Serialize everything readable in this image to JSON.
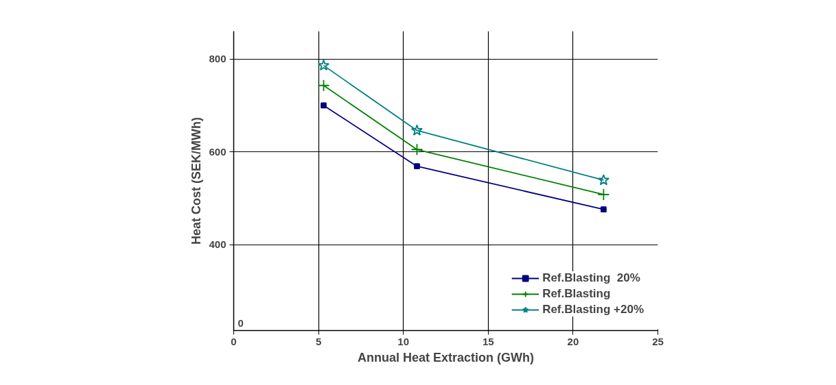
{
  "chart_data": {
    "type": "line",
    "xlabel": "Annual Heat Extraction (GWh)",
    "ylabel": "Heat Cost (SEK/MWh)",
    "x": [
      5.3,
      10.8,
      21.8
    ],
    "series": [
      {
        "name": "Ref.Blasting  20%",
        "color": "#000080",
        "marker": "square",
        "values": [
          700,
          569,
          476
        ]
      },
      {
        "name": "Ref.Blasting",
        "color": "#008000",
        "marker": "cross",
        "values": [
          743,
          605,
          508
        ]
      },
      {
        "name": "Ref.Blasting +20%",
        "color": "#008080",
        "marker": "star",
        "values": [
          786,
          646,
          539
        ]
      }
    ],
    "xlim": [
      0,
      25
    ],
    "xticks": [
      0,
      5,
      10,
      15,
      20,
      25
    ],
    "ylim": [
      215,
      860
    ],
    "yticks": [
      400,
      600,
      800
    ],
    "annotations": [
      "0"
    ],
    "grid": true,
    "legend": "bottom right",
    "line_style": "solid"
  }
}
